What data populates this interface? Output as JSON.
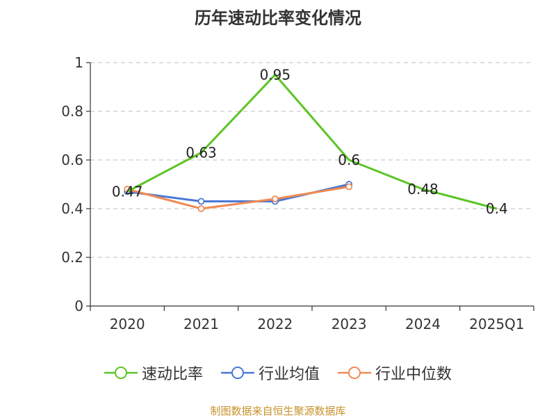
{
  "chart_data": {
    "type": "line",
    "title": "历年速动比率变化情况",
    "categories": [
      "2020",
      "2021",
      "2022",
      "2023",
      "2024",
      "2025Q1"
    ],
    "yticks": [
      "0",
      "0.2",
      "0.4",
      "0.6",
      "0.8",
      "1"
    ],
    "ylim": [
      0,
      1
    ],
    "grid": true,
    "legend_position": "bottom",
    "series": [
      {
        "name": "速动比率",
        "color": "#5cc424",
        "values": [
          0.47,
          0.63,
          0.95,
          0.6,
          0.48,
          0.4
        ],
        "labels": [
          "0.47",
          "0.63",
          "0.95",
          "0.6",
          "0.48",
          "0.4"
        ]
      },
      {
        "name": "行业均值",
        "color": "#4a78d6",
        "values": [
          0.47,
          0.43,
          0.43,
          0.5,
          null,
          null
        ]
      },
      {
        "name": "行业中位数",
        "color": "#f08a52",
        "values": [
          0.48,
          0.4,
          0.44,
          0.49,
          null,
          null
        ]
      }
    ]
  },
  "source": "制图数据来自恒生聚源数据库"
}
